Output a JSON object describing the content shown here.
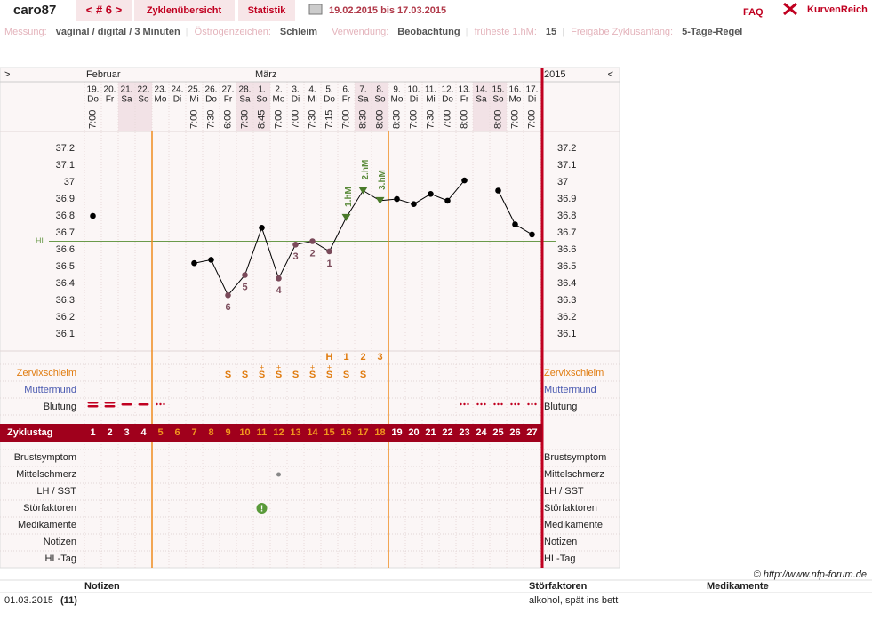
{
  "header": {
    "user": "caro87",
    "cycle_nav": "< # 6 >",
    "tabs": [
      "Zyklenübersicht",
      "Statistik"
    ],
    "period": "19.02.2015 bis 17.03.2015",
    "faq": "FAQ",
    "logo": "KurvenReich"
  },
  "settings": [
    {
      "label": "Messung:",
      "value": "vaginal / digital / 3 Minuten"
    },
    {
      "label": "Östrogenzeichen:",
      "value": "Schleim"
    },
    {
      "label": "Verwendung:",
      "value": "Beobachtung"
    },
    {
      "label": "früheste 1.hM:",
      "value": "15"
    },
    {
      "label": "Freigabe Zyklusanfang:",
      "value": "5-Tage-Regel"
    }
  ],
  "chart_data": {
    "type": "line",
    "nav_left": ">",
    "nav_right": "<",
    "months": [
      "Februar",
      "März"
    ],
    "year": "2015",
    "categories": [
      "19.",
      "20.",
      "21.",
      "22.",
      "23.",
      "24.",
      "25.",
      "26.",
      "27.",
      "28.",
      "1.",
      "2.",
      "3.",
      "4.",
      "5.",
      "6.",
      "7.",
      "8.",
      "9.",
      "10.",
      "11.",
      "12.",
      "13.",
      "14.",
      "15.",
      "16.",
      "17."
    ],
    "weekdays": [
      "Do",
      "Fr",
      "Sa",
      "So",
      "Mo",
      "Di",
      "Mi",
      "Do",
      "Fr",
      "Sa",
      "So",
      "Mo",
      "Di",
      "Mi",
      "Do",
      "Fr",
      "Sa",
      "So",
      "Mo",
      "Di",
      "Mi",
      "Do",
      "Fr",
      "Sa",
      "So",
      "Mo",
      "Di"
    ],
    "times": [
      "7:00",
      null,
      null,
      null,
      null,
      null,
      "7:00",
      "7:30",
      "6:00",
      "7:30",
      "8:45",
      "7:00",
      "7:00",
      "7:30",
      "7:15",
      "7:00",
      "8:30",
      "8:00",
      "8:30",
      "7:00",
      "7:30",
      "7:00",
      "8:00",
      null,
      "8:00",
      "7:00",
      "7:00"
    ],
    "cycle_days": [
      1,
      2,
      3,
      4,
      5,
      6,
      7,
      8,
      9,
      10,
      11,
      12,
      13,
      14,
      15,
      16,
      17,
      18,
      19,
      20,
      21,
      22,
      23,
      24,
      25,
      26,
      27
    ],
    "series": [
      {
        "name": "Temperatur",
        "color": "#000000",
        "values": [
          36.8,
          null,
          null,
          null,
          null,
          null,
          36.52,
          36.54,
          36.33,
          36.45,
          36.73,
          36.43,
          36.63,
          36.65,
          36.59,
          36.79,
          36.95,
          36.89,
          36.9,
          36.87,
          36.93,
          36.89,
          37.01,
          null,
          36.95,
          36.75,
          36.69
        ]
      }
    ],
    "ylim": [
      36.0,
      37.3
    ],
    "yticks": [
      36.1,
      36.2,
      36.3,
      36.4,
      36.5,
      36.6,
      36.7,
      36.8,
      36.9,
      37,
      37.1,
      37.2
    ],
    "coverline": 36.65,
    "coverline_label": "HL",
    "point_labels": [
      null,
      null,
      null,
      null,
      null,
      null,
      null,
      null,
      "6",
      "5",
      null,
      "4",
      "3",
      "2",
      "1",
      null,
      null,
      null,
      null,
      null,
      null,
      null,
      null,
      null,
      null,
      null,
      null
    ],
    "hm_labels": [
      null,
      null,
      null,
      null,
      null,
      null,
      null,
      null,
      null,
      null,
      null,
      null,
      null,
      null,
      null,
      "1.hM",
      "2.hM",
      "3.hM",
      null,
      null,
      null,
      null,
      null,
      null,
      null,
      null,
      null
    ],
    "peak_count": [
      null,
      null,
      null,
      null,
      null,
      null,
      null,
      null,
      null,
      null,
      null,
      null,
      null,
      null,
      "H",
      "1",
      "2",
      "3",
      null,
      null,
      null,
      null,
      null,
      null,
      null,
      null,
      null
    ],
    "mucus_top": [
      null,
      null,
      null,
      null,
      null,
      null,
      null,
      null,
      null,
      null,
      "+",
      "+",
      null,
      "+",
      "+",
      null,
      null,
      null,
      null,
      null,
      null,
      null,
      null,
      null,
      null,
      null,
      null
    ],
    "mucus": [
      null,
      null,
      null,
      null,
      null,
      null,
      null,
      null,
      "S",
      "S",
      "S",
      "S",
      "S",
      "S",
      "S",
      "S",
      "S",
      null,
      null,
      null,
      null,
      null,
      null,
      null,
      null,
      null,
      null
    ],
    "bleeding": [
      3,
      3,
      2,
      2,
      1,
      null,
      null,
      null,
      null,
      null,
      null,
      null,
      null,
      null,
      null,
      null,
      null,
      null,
      null,
      null,
      null,
      null,
      1,
      1,
      1,
      1,
      1
    ],
    "mittelschmerz": [
      null,
      null,
      null,
      null,
      null,
      null,
      null,
      null,
      null,
      null,
      null,
      1,
      null,
      null,
      null,
      null,
      null,
      null,
      null,
      null,
      null,
      null,
      null,
      null,
      null,
      null,
      null
    ],
    "stoerfaktoren": [
      null,
      null,
      null,
      null,
      null,
      null,
      null,
      null,
      null,
      null,
      "!",
      null,
      null,
      null,
      null,
      null,
      null,
      null,
      null,
      null,
      null,
      null,
      null,
      null,
      null,
      null,
      null
    ],
    "boundary_days": [
      4,
      18
    ],
    "row_labels": {
      "zervix": "Zervixschleim",
      "muttermund": "Muttermund",
      "blutung": "Blutung",
      "zyklustag": "Zyklustag",
      "lower": [
        "Brustsymptom",
        "Mittelschmerz",
        "LH / SST",
        "Störfaktoren",
        "Medikamente",
        "Notizen",
        "HL-Tag"
      ]
    }
  },
  "footer": {
    "copyright": "© http://www.nfp-forum.de",
    "columns": [
      "Notizen",
      "Störfaktoren",
      "Medikamente"
    ],
    "row": {
      "date": "01.03.2015",
      "day": "(11)",
      "stoerfaktoren": "alkohol, spät ins bett"
    }
  }
}
